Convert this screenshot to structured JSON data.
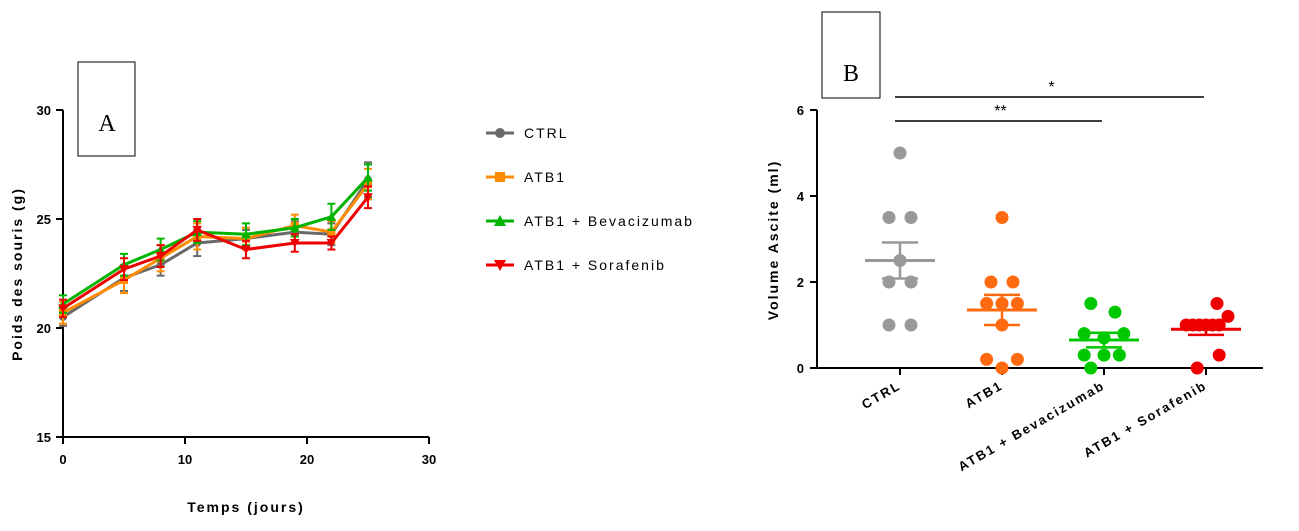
{
  "chart_data": [
    {
      "type": "line",
      "panel_label": "A",
      "xlabel": "Temps (jours)",
      "ylabel": "Poids des souris (g)",
      "xlim": [
        0,
        30
      ],
      "ylim": [
        15,
        30
      ],
      "x_ticks": [
        "0",
        "10",
        "20",
        "30"
      ],
      "y_ticks": [
        "15",
        "20",
        "25",
        "30"
      ],
      "x": [
        0,
        5,
        8,
        11,
        15,
        19,
        22,
        25
      ],
      "series": [
        {
          "name": "CTRL",
          "color": "#696969",
          "marker": "circle",
          "values": [
            20.5,
            22.3,
            22.9,
            23.9,
            24.1,
            24.4,
            24.3,
            26.8
          ],
          "errors": [
            0.4,
            0.6,
            0.5,
            0.6,
            0.4,
            0.5,
            0.5,
            0.8
          ]
        },
        {
          "name": "ATB1",
          "color": "#ff8c00",
          "marker": "square",
          "values": [
            20.7,
            22.2,
            23.2,
            24.2,
            24.1,
            24.7,
            24.4,
            26.6
          ],
          "errors": [
            0.5,
            0.6,
            0.6,
            0.6,
            0.5,
            0.5,
            0.5,
            0.7
          ]
        },
        {
          "name": "ATB1 + Bevacizumab",
          "color": "#00b400",
          "marker": "triangle-up",
          "values": [
            21.1,
            22.9,
            23.6,
            24.4,
            24.3,
            24.6,
            25.1,
            26.9
          ],
          "errors": [
            0.4,
            0.5,
            0.5,
            0.5,
            0.5,
            0.4,
            0.6,
            0.6
          ]
        },
        {
          "name": "ATB1 + Sorafenib",
          "color": "#ee0000",
          "marker": "triangle-down",
          "values": [
            20.9,
            22.7,
            23.3,
            24.5,
            23.6,
            23.9,
            23.9,
            26.0
          ],
          "errors": [
            0.4,
            0.5,
            0.5,
            0.5,
            0.4,
            0.4,
            0.3,
            0.5
          ]
        }
      ],
      "legend": "right"
    },
    {
      "type": "scatter",
      "panel_label": "B",
      "ylabel": "Volume Ascite (ml)",
      "ylim": [
        0,
        6
      ],
      "y_ticks": [
        "0",
        "2",
        "4",
        "6"
      ],
      "categories": [
        "CTRL",
        "ATB1",
        "ATB1 + Bevacizumab",
        "ATB1 + Sorafenib"
      ],
      "groups": [
        {
          "name": "CTRL",
          "color": "#999999",
          "points": [
            5.0,
            3.5,
            3.5,
            2.5,
            2.0,
            2.0,
            1.0,
            1.0
          ],
          "offsets": [
            0,
            -0.5,
            0.5,
            0,
            -0.5,
            0.5,
            -0.5,
            0.5
          ],
          "mean": 2.5,
          "sem": 0.42
        },
        {
          "name": "ATB1",
          "color": "#ff6a10",
          "points": [
            3.5,
            2.0,
            2.0,
            1.5,
            1.5,
            1.5,
            1.0,
            0.2,
            0.2,
            0.0
          ],
          "offsets": [
            0,
            -0.5,
            0.5,
            -0.7,
            0,
            0.7,
            0,
            -0.7,
            0.7,
            0
          ],
          "mean": 1.35,
          "sem": 0.35
        },
        {
          "name": "ATB1 + Bevacizumab",
          "color": "#00c800",
          "points": [
            1.5,
            1.3,
            0.8,
            0.8,
            0.7,
            0.3,
            0.3,
            0.3,
            0.0
          ],
          "offsets": [
            -0.6,
            0.5,
            -0.9,
            0.9,
            0,
            -0.9,
            0,
            0.7,
            -0.6
          ],
          "mean": 0.65,
          "sem": 0.17
        },
        {
          "name": "ATB1 + Sorafenib",
          "color": "#ee0000",
          "points": [
            1.5,
            1.2,
            1.0,
            1.0,
            1.0,
            1.0,
            1.0,
            1.0,
            0.3,
            0.0
          ],
          "offsets": [
            0.5,
            1.0,
            -0.9,
            -0.6,
            -0.3,
            0,
            0.3,
            0.6,
            0.6,
            -0.4
          ],
          "mean": 0.9,
          "sem": 0.13
        }
      ],
      "significance": [
        {
          "label": "**",
          "from": "CTRL",
          "to": "ATB1 + Bevacizumab"
        },
        {
          "label": "*",
          "from": "CTRL",
          "to": "ATB1 + Sorafenib"
        }
      ]
    }
  ]
}
